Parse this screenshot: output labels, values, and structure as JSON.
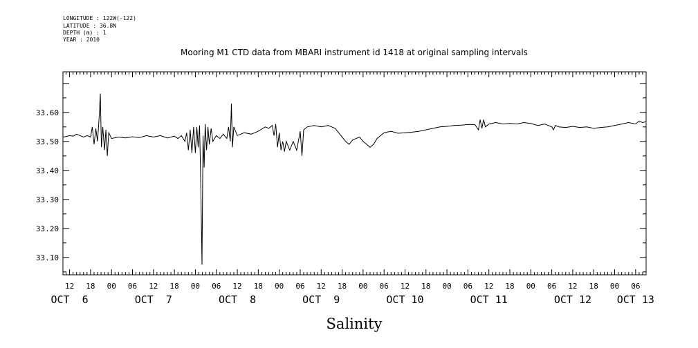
{
  "header": {
    "longitude": "LONGITUDE : 122W(-122)",
    "latitude": "LATITUDE : 36.8N",
    "depth": "DEPTH (m) : 1",
    "year": "YEAR : 2010"
  },
  "chart_data": {
    "type": "line",
    "title": "Mooring M1 CTD data from MBARI instrument id 1418 at original sampling intervals",
    "xlabel": "Salinity",
    "ylabel": "",
    "ylim": [
      33.04,
      33.74
    ],
    "yticks": [
      33.1,
      33.2,
      33.3,
      33.4,
      33.5,
      33.6
    ],
    "ytick_labels": [
      "33.10",
      "33.20",
      "33.30",
      "33.40",
      "33.50",
      "33.60"
    ],
    "x_unit": "hours after Oct 6 00:00, 2010",
    "xlim": [
      10.1,
      177
    ],
    "hour_ticks": [
      12,
      18,
      24,
      30,
      36,
      42,
      48,
      54,
      60,
      66,
      72,
      78,
      84,
      90,
      96,
      102,
      108,
      114,
      120,
      126,
      132,
      138,
      144,
      150,
      156,
      162,
      168,
      174
    ],
    "hour_labels": [
      "12",
      "18",
      "00",
      "06",
      "12",
      "18",
      "00",
      "06",
      "12",
      "18",
      "00",
      "06",
      "12",
      "18",
      "00",
      "06",
      "12",
      "18",
      "00",
      "06",
      "12",
      "18",
      "00",
      "06",
      "12",
      "18",
      "00",
      "06"
    ],
    "day_labels": [
      {
        "text": "OCT  6",
        "x": 12
      },
      {
        "text": "OCT  7",
        "x": 36
      },
      {
        "text": "OCT  8",
        "x": 60
      },
      {
        "text": "OCT  9",
        "x": 84
      },
      {
        "text": "OCT 10",
        "x": 108
      },
      {
        "text": "OCT 11",
        "x": 132
      },
      {
        "text": "OCT 12",
        "x": 156
      },
      {
        "text": "OCT 13",
        "x": 174
      }
    ],
    "grid": false,
    "series": [
      {
        "values": [
          [
            10.1,
            33.515
          ],
          [
            11,
            33.517
          ],
          [
            12,
            33.52
          ],
          [
            13,
            33.518
          ],
          [
            14,
            33.525
          ],
          [
            15,
            33.52
          ],
          [
            16,
            33.515
          ],
          [
            17,
            33.52
          ],
          [
            18,
            33.515
          ],
          [
            18.5,
            33.55
          ],
          [
            19,
            33.49
          ],
          [
            19.5,
            33.545
          ],
          [
            20,
            33.5
          ],
          [
            20.5,
            33.59
          ],
          [
            20.8,
            33.665
          ],
          [
            21.1,
            33.48
          ],
          [
            21.5,
            33.55
          ],
          [
            22,
            33.47
          ],
          [
            22.4,
            33.54
          ],
          [
            22.8,
            33.45
          ],
          [
            23.2,
            33.53
          ],
          [
            24,
            33.51
          ],
          [
            26,
            33.515
          ],
          [
            28,
            33.512
          ],
          [
            30,
            33.516
          ],
          [
            32,
            33.513
          ],
          [
            34,
            33.52
          ],
          [
            36,
            33.515
          ],
          [
            38,
            33.52
          ],
          [
            40,
            33.512
          ],
          [
            42,
            33.518
          ],
          [
            43,
            33.51
          ],
          [
            44,
            33.52
          ],
          [
            45,
            33.5
          ],
          [
            45.5,
            33.53
          ],
          [
            46,
            33.47
          ],
          [
            46.5,
            33.54
          ],
          [
            47,
            33.46
          ],
          [
            47.5,
            33.55
          ],
          [
            48,
            33.46
          ],
          [
            48.4,
            33.55
          ],
          [
            48.8,
            33.48
          ],
          [
            49.2,
            33.555
          ],
          [
            49.6,
            33.32
          ],
          [
            49.9,
            33.075
          ],
          [
            50.2,
            33.52
          ],
          [
            50.5,
            33.41
          ],
          [
            50.8,
            33.56
          ],
          [
            51.2,
            33.47
          ],
          [
            51.6,
            33.55
          ],
          [
            52,
            33.49
          ],
          [
            52.5,
            33.545
          ],
          [
            53,
            33.5
          ],
          [
            54,
            33.52
          ],
          [
            55,
            33.51
          ],
          [
            56,
            33.525
          ],
          [
            57,
            33.51
          ],
          [
            57.5,
            33.55
          ],
          [
            58,
            33.5
          ],
          [
            58.3,
            33.63
          ],
          [
            58.6,
            33.48
          ],
          [
            59,
            33.55
          ],
          [
            60,
            33.52
          ],
          [
            62,
            33.53
          ],
          [
            64,
            33.525
          ],
          [
            66,
            33.535
          ],
          [
            68,
            33.55
          ],
          [
            69,
            33.545
          ],
          [
            70,
            33.555
          ],
          [
            70.5,
            33.52
          ],
          [
            71,
            33.56
          ],
          [
            71.5,
            33.48
          ],
          [
            72,
            33.53
          ],
          [
            72.5,
            33.47
          ],
          [
            73,
            33.5
          ],
          [
            73.5,
            33.465
          ],
          [
            74,
            33.5
          ],
          [
            75,
            33.47
          ],
          [
            76,
            33.5
          ],
          [
            77,
            33.47
          ],
          [
            78,
            33.535
          ],
          [
            78.5,
            33.45
          ],
          [
            79,
            33.54
          ],
          [
            80,
            33.55
          ],
          [
            82,
            33.555
          ],
          [
            84,
            33.55
          ],
          [
            86,
            33.555
          ],
          [
            88,
            33.545
          ],
          [
            89,
            33.53
          ],
          [
            90,
            33.515
          ],
          [
            91,
            33.5
          ],
          [
            92,
            33.49
          ],
          [
            93,
            33.505
          ],
          [
            94,
            33.51
          ],
          [
            95,
            33.515
          ],
          [
            96,
            33.5
          ],
          [
            97,
            33.49
          ],
          [
            98,
            33.48
          ],
          [
            99,
            33.49
          ],
          [
            100,
            33.51
          ],
          [
            101,
            33.52
          ],
          [
            102,
            33.53
          ],
          [
            104,
            33.535
          ],
          [
            106,
            33.528
          ],
          [
            108,
            33.53
          ],
          [
            110,
            33.532
          ],
          [
            112,
            33.535
          ],
          [
            114,
            33.54
          ],
          [
            116,
            33.545
          ],
          [
            118,
            33.55
          ],
          [
            120,
            33.552
          ],
          [
            122,
            33.555
          ],
          [
            124,
            33.556
          ],
          [
            126,
            33.558
          ],
          [
            128,
            33.558
          ],
          [
            129,
            33.54
          ],
          [
            129.5,
            33.575
          ],
          [
            130,
            33.545
          ],
          [
            130.5,
            33.575
          ],
          [
            131,
            33.55
          ],
          [
            132,
            33.56
          ],
          [
            134,
            33.565
          ],
          [
            136,
            33.56
          ],
          [
            138,
            33.562
          ],
          [
            140,
            33.56
          ],
          [
            142,
            33.565
          ],
          [
            144,
            33.562
          ],
          [
            146,
            33.555
          ],
          [
            148,
            33.56
          ],
          [
            150,
            33.55
          ],
          [
            150.5,
            33.54
          ],
          [
            151,
            33.555
          ],
          [
            152,
            33.55
          ],
          [
            154,
            33.548
          ],
          [
            156,
            33.552
          ],
          [
            158,
            33.548
          ],
          [
            160,
            33.55
          ],
          [
            162,
            33.545
          ],
          [
            164,
            33.548
          ],
          [
            166,
            33.55
          ],
          [
            168,
            33.555
          ],
          [
            170,
            33.56
          ],
          [
            172,
            33.565
          ],
          [
            174,
            33.56
          ],
          [
            175,
            33.57
          ],
          [
            176,
            33.565
          ],
          [
            177,
            33.568
          ]
        ]
      }
    ]
  }
}
